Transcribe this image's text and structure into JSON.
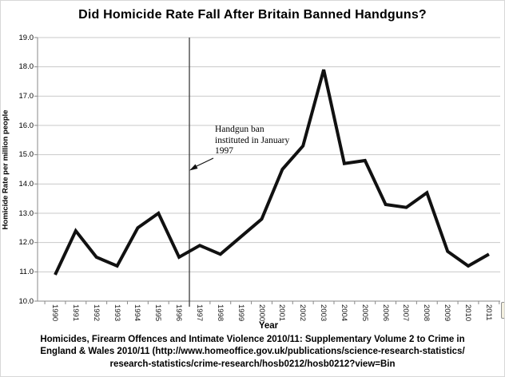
{
  "chart": {
    "title": "Did Homicide Rate Fall After Britain Banned Handguns?",
    "ylabel": "Homicide Rate per million people",
    "xlabel": "Year",
    "annotation": {
      "line1": "Handgun ban",
      "line2": "instituted in January",
      "line3": "1997"
    },
    "footer": {
      "line1": "Homicides, Firearm Offences and Intimate Violence 2010/11: Supplementary Volume 2 to Crime in",
      "line2": "England & Wales 2010/11 (http://www.homeoffice.gov.uk/publications/science-research-statistics/",
      "line3": "research-statistics/crime-research/hosb0212/hosb0212?view=Bin"
    }
  },
  "chart_data": {
    "type": "line",
    "title": "Did Homicide Rate Fall After Britain Banned Handguns?",
    "xlabel": "Year",
    "ylabel": "Homicide Rate per million people",
    "categories": [
      "1990",
      "1991",
      "1992",
      "1993",
      "1994",
      "1995",
      "1996",
      "1997",
      "1998",
      "1999",
      "2000",
      "2001",
      "2002",
      "2003",
      "2004",
      "2005",
      "2006",
      "2007",
      "2008",
      "2009",
      "2010",
      "2011"
    ],
    "values": [
      10.9,
      12.4,
      11.5,
      11.2,
      12.5,
      13.0,
      11.5,
      11.9,
      11.6,
      12.2,
      12.8,
      14.5,
      15.3,
      17.9,
      14.7,
      14.8,
      13.3,
      13.2,
      13.7,
      11.7,
      11.2,
      11.6
    ],
    "ylim": [
      10.0,
      19.0
    ],
    "ytick_step": 1.0,
    "ytick_labels_top_to_bottom": [
      "19.0",
      "18.0",
      "17.0",
      "16.0",
      "15.0",
      "14.0",
      "13.0",
      "12.0",
      "11.0",
      "10.0"
    ],
    "grid": "horizontal",
    "legend": "none",
    "line_color": "#111111",
    "grid_color": "#c9c9c9",
    "axis_color": "#8a8a8a",
    "event_line": {
      "label": "Handgun ban instituted in January 1997",
      "x_between": [
        "1996",
        "1997"
      ],
      "color": "#3c3c3c"
    }
  }
}
